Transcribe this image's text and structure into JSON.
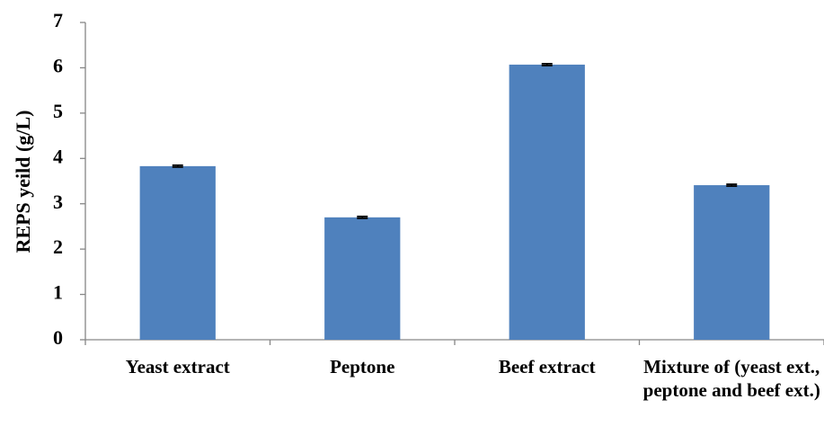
{
  "chart_data": {
    "type": "bar",
    "y_label": "REPS yeild (g/L)",
    "categories": [
      "Yeast extract",
      "Peptone",
      "Beef extract",
      "Mixture of (yeast ext., peptone and beef ext.)"
    ],
    "values": [
      3.83,
      2.7,
      6.07,
      3.41
    ],
    "errors": [
      0.02,
      0.02,
      0.02,
      0.02
    ],
    "color": "#4f81bd",
    "ylim": [
      0,
      7
    ],
    "yticks": [
      0,
      1,
      2,
      3,
      4,
      5,
      6,
      7
    ],
    "grid": false
  }
}
